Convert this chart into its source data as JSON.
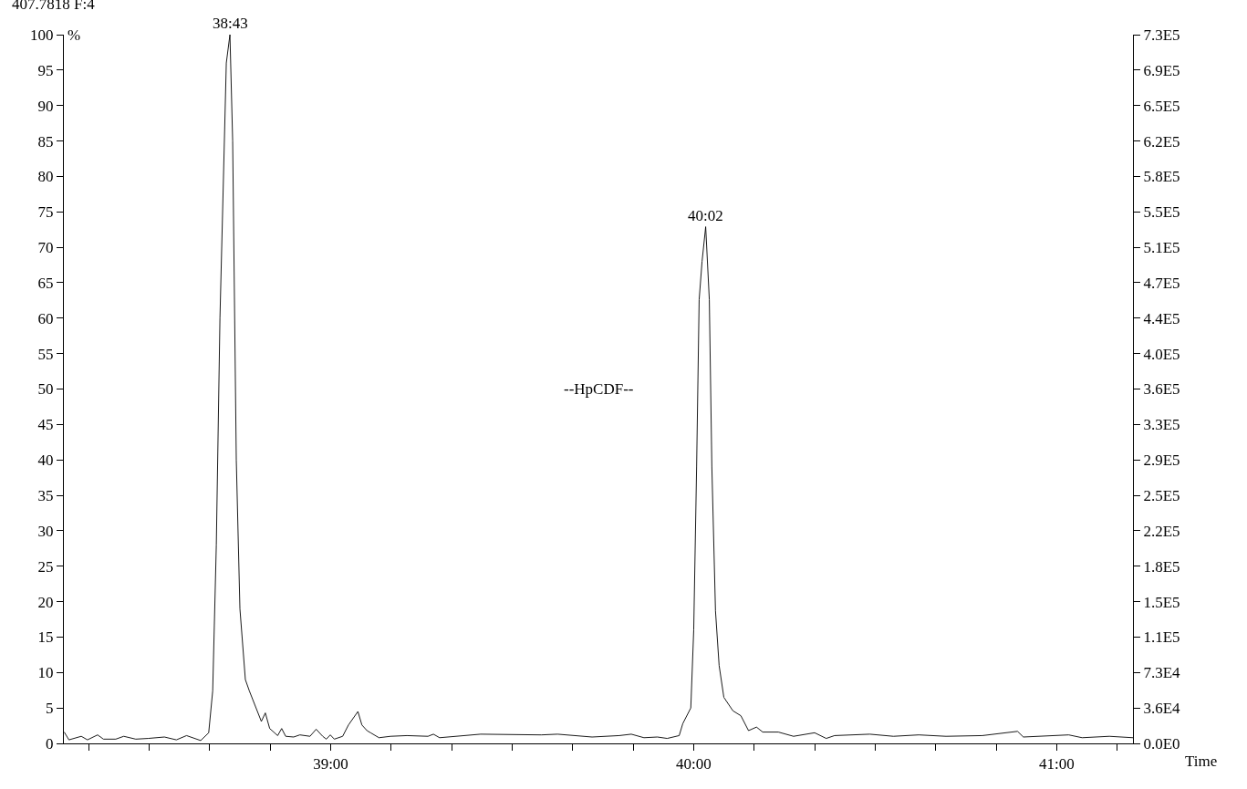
{
  "chart_data": {
    "type": "line",
    "title": "407.7818 F:4",
    "xlabel": "Time",
    "ylabel": "%",
    "annotations": [
      {
        "text": "38:43",
        "x": 38.7225,
        "y": 100
      },
      {
        "text": "40:02",
        "x": 40.033,
        "y": 72.9
      },
      "--HpCDF--"
    ],
    "x": [
      38.266,
      38.279,
      38.313,
      38.33,
      38.358,
      38.374,
      38.408,
      38.43,
      38.463,
      38.497,
      38.542,
      38.575,
      38.603,
      38.642,
      38.664,
      38.675,
      38.685,
      38.695,
      38.7125,
      38.7225,
      38.73,
      38.74,
      38.75,
      38.765,
      38.776,
      38.809,
      38.82,
      38.832,
      38.854,
      38.865,
      38.876,
      38.898,
      38.915,
      38.943,
      38.96,
      38.978,
      38.988,
      38.999,
      39.01,
      39.033,
      39.049,
      39.075,
      39.086,
      39.1,
      39.11,
      39.133,
      39.165,
      39.21,
      39.268,
      39.283,
      39.3,
      39.413,
      39.58,
      39.625,
      39.72,
      39.795,
      39.828,
      39.863,
      39.9,
      39.927,
      39.96,
      39.97,
      39.992,
      40.0,
      40.008,
      40.015,
      40.023,
      40.033,
      40.043,
      40.05,
      40.06,
      40.07,
      40.083,
      40.108,
      40.13,
      40.151,
      40.173,
      40.19,
      40.233,
      40.275,
      40.333,
      40.365,
      40.388,
      40.485,
      40.55,
      40.62,
      40.695,
      40.795,
      40.892,
      40.908,
      41.033,
      41.07,
      41.145,
      41.21
    ],
    "series": [
      {
        "color": "#000000",
        "values": [
          1.6,
          0.5,
          1.0,
          0.5,
          1.2,
          0.6,
          0.6,
          1.0,
          0.6,
          0.7,
          0.9,
          0.5,
          1.1,
          0.4,
          1.5,
          7.4,
          28,
          60,
          96,
          100,
          85,
          40,
          19,
          9,
          7.4,
          3.1,
          4.3,
          2.1,
          1.1,
          2.1,
          1.0,
          0.9,
          1.2,
          1.0,
          2.0,
          1.0,
          0.6,
          1.2,
          0.6,
          1.0,
          2.6,
          4.5,
          2.6,
          1.8,
          1.5,
          0.8,
          1.0,
          1.1,
          1.0,
          1.3,
          0.8,
          1.3,
          1.2,
          1.3,
          0.9,
          1.1,
          1.3,
          0.8,
          0.9,
          0.7,
          1.1,
          2.8,
          5,
          16,
          39,
          62.6,
          68,
          72.9,
          62.6,
          39,
          18.7,
          11,
          6.5,
          4.6,
          3.9,
          1.8,
          2.3,
          1.6,
          1.6,
          1.0,
          1.5,
          0.7,
          1.1,
          1.3,
          1.0,
          1.2,
          1.0,
          1.1,
          1.7,
          0.9,
          1.2,
          0.8,
          1.0,
          0.8
        ]
      }
    ],
    "xlim": [
      38.265,
      41.21
    ],
    "xticks": [
      {
        "value": 38.3333,
        "label": null
      },
      {
        "value": 38.5,
        "label": null
      },
      {
        "value": 38.6667,
        "label": null
      },
      {
        "value": 38.8333,
        "label": null
      },
      {
        "value": 39,
        "label": "39:00"
      },
      {
        "value": 39.1667,
        "label": null
      },
      {
        "value": 39.3333,
        "label": null
      },
      {
        "value": 39.5,
        "label": null
      },
      {
        "value": 39.6667,
        "label": null
      },
      {
        "value": 39.8333,
        "label": null
      },
      {
        "value": 40,
        "label": "40:00"
      },
      {
        "value": 40.1667,
        "label": null
      },
      {
        "value": 40.3333,
        "label": null
      },
      {
        "value": 40.5,
        "label": null
      },
      {
        "value": 40.6667,
        "label": null
      },
      {
        "value": 40.8333,
        "label": null
      },
      {
        "value": 41,
        "label": "41:00"
      },
      {
        "value": 41.1667,
        "label": null
      }
    ],
    "ylim": [
      0,
      100
    ],
    "yticks": [
      0,
      5,
      10,
      15,
      20,
      25,
      30,
      35,
      40,
      45,
      50,
      55,
      60,
      65,
      70,
      75,
      80,
      85,
      90,
      95,
      100
    ],
    "y2lim": [
      0,
      727000
    ],
    "y2ticks": [
      {
        "value": 0,
        "label": "0.0E0"
      },
      {
        "value": 36350,
        "label": "3.6E4"
      },
      {
        "value": 72700,
        "label": "7.3E4"
      },
      {
        "value": 109050,
        "label": "1.1E5"
      },
      {
        "value": 145400,
        "label": "1.5E5"
      },
      {
        "value": 181750,
        "label": "1.8E5"
      },
      {
        "value": 218100,
        "label": "2.2E5"
      },
      {
        "value": 254450,
        "label": "2.5E5"
      },
      {
        "value": 290800,
        "label": "2.9E5"
      },
      {
        "value": 327150,
        "label": "3.3E5"
      },
      {
        "value": 363500,
        "label": "3.6E5"
      },
      {
        "value": 399850,
        "label": "4.0E5"
      },
      {
        "value": 436200,
        "label": "4.4E5"
      },
      {
        "value": 472550,
        "label": "4.7E5"
      },
      {
        "value": 508900,
        "label": "5.1E5"
      },
      {
        "value": 545250,
        "label": "5.5E5"
      },
      {
        "value": 581600,
        "label": "5.8E5"
      },
      {
        "value": 617950,
        "label": "6.2E5"
      },
      {
        "value": 654300,
        "label": "6.5E5"
      },
      {
        "value": 690650,
        "label": "6.9E5"
      },
      {
        "value": 727000,
        "label": "7.3E5"
      }
    ],
    "marker": "none",
    "line_style": "solid"
  }
}
